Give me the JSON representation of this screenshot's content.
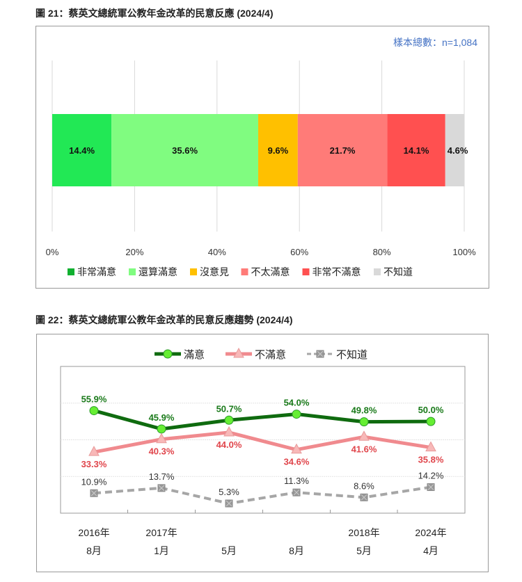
{
  "chart_data": [
    {
      "type": "bar",
      "orientation": "horizontal-stacked",
      "title": "圖 21：蔡英文總統軍公教年金改革的民意反應  (2024/4)",
      "annotation": "樣本總數：n=1,084",
      "xlim": [
        0,
        100
      ],
      "ticks": [
        "0%",
        "20%",
        "40%",
        "60%",
        "80%",
        "100%"
      ],
      "grid": true,
      "legend_position": "bottom",
      "series": [
        {
          "name": "非常滿意",
          "value": 14.4,
          "label": "14.4%",
          "color": "#22e855",
          "legend_color": "#10b030"
        },
        {
          "name": "還算滿意",
          "value": 35.6,
          "label": "35.6%",
          "color": "#80fc80"
        },
        {
          "name": "沒意見",
          "value": 9.6,
          "label": "9.6%",
          "color": "#ffc000"
        },
        {
          "name": "不太滿意",
          "value": 21.7,
          "label": "21.7%",
          "color": "#ff7b78"
        },
        {
          "name": "非常不滿意",
          "value": 14.1,
          "label": "14.1%",
          "color": "#ff5050"
        },
        {
          "name": "不知道",
          "value": 4.6,
          "label": "4.6%",
          "color": "#d9d9d9"
        }
      ]
    },
    {
      "type": "line",
      "title": "圖 22：蔡英文總統軍公教年金改革的民意反應趨勢  (2024/4)",
      "categories": [
        [
          "2016年",
          "8月"
        ],
        [
          "2017年",
          "1月"
        ],
        [
          "",
          "5月"
        ],
        [
          "",
          "8月"
        ],
        [
          "2018年",
          "5月"
        ],
        [
          "2024年",
          "4月"
        ]
      ],
      "ylim": [
        0,
        80
      ],
      "grid": true,
      "legend_position": "top",
      "series": [
        {
          "name": "滿意",
          "values": [
            55.9,
            45.9,
            50.7,
            54.0,
            49.8,
            50.0
          ],
          "labels": [
            "55.9%",
            "45.9%",
            "50.7%",
            "54.0%",
            "49.8%",
            "50.0%"
          ],
          "color": "#0f6b0f",
          "marker": "circle",
          "marker_color": "#66ee33",
          "label_color": "#1a7a1a"
        },
        {
          "name": "不滿意",
          "values": [
            33.3,
            40.3,
            44.0,
            34.6,
            41.6,
            35.8
          ],
          "labels": [
            "33.3%",
            "40.3%",
            "44.0%",
            "34.6%",
            "41.6%",
            "35.8%"
          ],
          "color": "#f08a8e",
          "marker": "triangle",
          "marker_color": "#f8b8b8",
          "label_color": "#e0454b"
        },
        {
          "name": "不知道",
          "values": [
            10.9,
            13.7,
            5.3,
            11.3,
            8.6,
            14.2
          ],
          "labels": [
            "10.9%",
            "13.7%",
            "5.3%",
            "11.3%",
            "8.6%",
            "14.2%"
          ],
          "color": "#a6a6a6",
          "marker": "x-square",
          "marker_color": "#999999",
          "label_color": "#333333",
          "dashed": true
        }
      ]
    }
  ]
}
